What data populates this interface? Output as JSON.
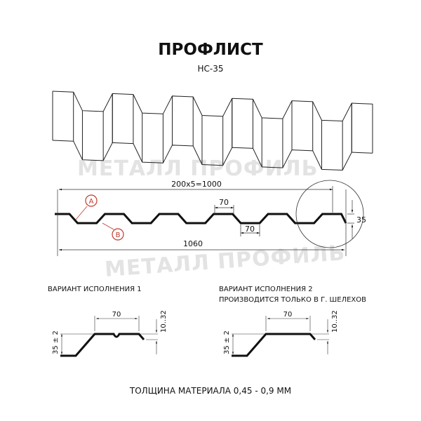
{
  "header": {
    "title": "ПРОФЛИСТ",
    "model": "НС-35"
  },
  "watermark": {
    "text": "МЕТАЛЛ ПРОФИЛЬ"
  },
  "profile": {
    "pitch_dimension": "200x5=1000",
    "total_width": "1060",
    "top_width": "70",
    "bottom_width": "70",
    "height": "35",
    "marker_a": "A",
    "marker_b": "B",
    "marker_color": "#c0392b"
  },
  "variants": [
    {
      "title": "ВАРИАНТ ИСПОЛНЕНИЯ 1",
      "note": "",
      "top_width": "70",
      "height": "35 ± 2",
      "edge": "10..32"
    },
    {
      "title": "ВАРИАНТ ИСПОЛНЕНИЯ 2",
      "note": "ПРОИЗВОДИТСЯ ТОЛЬКО В Г. ШЕЛЕХОВ",
      "top_width": "70",
      "height": "35 ± 2",
      "edge": "10..32"
    }
  ],
  "footer": {
    "thickness": "ТОЛЩИНА МАТЕРИАЛА 0,45 - 0,9 ММ"
  }
}
